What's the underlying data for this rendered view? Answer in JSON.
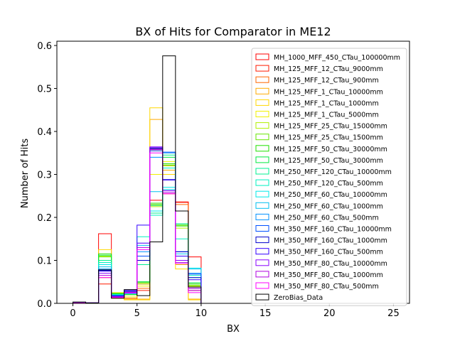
{
  "chart_data": {
    "type": "step-histogram",
    "title": "BX of Hits for Comparator in ME12",
    "xlabel": "BX",
    "ylabel": "Number of Hits",
    "xlim": [
      -1.25,
      26.25
    ],
    "ylim": [
      0,
      0.61
    ],
    "xticks": [
      0,
      5,
      10,
      15,
      20,
      25
    ],
    "yticks": [
      0.0,
      0.1,
      0.2,
      0.3,
      0.4,
      0.5,
      0.6
    ],
    "bin_edges": [
      0,
      1,
      2,
      3,
      4,
      5,
      6,
      7,
      8,
      9,
      10,
      11,
      12,
      13,
      14,
      15,
      16,
      17,
      18,
      19,
      20,
      21,
      22,
      23,
      24,
      25
    ],
    "legend_position": "upper right",
    "series": [
      {
        "name": "MH_1000_MFF_450_CTau_100000mm",
        "color": "#ff0000",
        "values": [
          0.001,
          0.001,
          0.162,
          0.015,
          0.02,
          0.045,
          0.24,
          0.255,
          0.236,
          0.108,
          0,
          0,
          0,
          0,
          0,
          0,
          0,
          0,
          0,
          0,
          0,
          0,
          0,
          0,
          0
        ]
      },
      {
        "name": "MH_125_MFF_12_CTau_9000mm",
        "color": "#ff1a00",
        "values": [
          0.001,
          0.001,
          0.045,
          0.012,
          0.01,
          0.03,
          0.36,
          0.32,
          0.235,
          0.03,
          0,
          0,
          0,
          0,
          0,
          0,
          0,
          0,
          0,
          0,
          0,
          0,
          0,
          0,
          0
        ]
      },
      {
        "name": "MH_125_MFF_12_CTau_900mm",
        "color": "#ff6600",
        "values": [
          0.001,
          0.001,
          0.06,
          0.014,
          0.012,
          0.035,
          0.355,
          0.315,
          0.23,
          0.035,
          0,
          0,
          0,
          0,
          0,
          0,
          0,
          0,
          0,
          0,
          0,
          0,
          0,
          0,
          0
        ]
      },
      {
        "name": "MH_125_MFF_1_CTau_10000mm",
        "color": "#ffaa00",
        "values": [
          0.001,
          0.001,
          0.1,
          0.02,
          0.01,
          0.01,
          0.428,
          0.31,
          0.1,
          0.01,
          0,
          0,
          0,
          0,
          0,
          0,
          0,
          0,
          0,
          0,
          0,
          0,
          0,
          0,
          0
        ]
      },
      {
        "name": "MH_125_MFF_1_CTau_1000mm",
        "color": "#ffd700",
        "values": [
          0.001,
          0.001,
          0.125,
          0.018,
          0.008,
          0.008,
          0.455,
          0.3,
          0.08,
          0.008,
          0,
          0,
          0,
          0,
          0,
          0,
          0,
          0,
          0,
          0,
          0,
          0,
          0,
          0,
          0
        ]
      },
      {
        "name": "MH_125_MFF_1_CTau_5000mm",
        "color": "#f0f000",
        "values": [
          0.001,
          0.001,
          0.11,
          0.025,
          0.015,
          0.04,
          0.3,
          0.33,
          0.09,
          0.04,
          0,
          0,
          0,
          0,
          0,
          0,
          0,
          0,
          0,
          0,
          0,
          0,
          0,
          0,
          0
        ]
      },
      {
        "name": "MH_125_MFF_25_CTau_15000mm",
        "color": "#b0f000",
        "values": [
          0.001,
          0.001,
          0.11,
          0.024,
          0.02,
          0.045,
          0.225,
          0.32,
          0.175,
          0.04,
          0,
          0,
          0,
          0,
          0,
          0,
          0,
          0,
          0,
          0,
          0,
          0,
          0,
          0,
          0
        ]
      },
      {
        "name": "MH_125_MFF_25_CTau_1500mm",
        "color": "#66e600",
        "values": [
          0.001,
          0.001,
          0.108,
          0.022,
          0.02,
          0.048,
          0.23,
          0.322,
          0.182,
          0.042,
          0,
          0,
          0,
          0,
          0,
          0,
          0,
          0,
          0,
          0,
          0,
          0,
          0,
          0,
          0
        ]
      },
      {
        "name": "MH_125_MFF_50_CTau_30000mm",
        "color": "#20e000",
        "values": [
          0.001,
          0.001,
          0.115,
          0.023,
          0.021,
          0.05,
          0.233,
          0.325,
          0.18,
          0.045,
          0,
          0,
          0,
          0,
          0,
          0,
          0,
          0,
          0,
          0,
          0,
          0,
          0,
          0,
          0
        ]
      },
      {
        "name": "MH_125_MFF_50_CTau_3000mm",
        "color": "#00e840",
        "values": [
          0.001,
          0.001,
          0.112,
          0.022,
          0.022,
          0.05,
          0.228,
          0.34,
          0.185,
          0.048,
          0,
          0,
          0,
          0,
          0,
          0,
          0,
          0,
          0,
          0,
          0,
          0,
          0,
          0,
          0
        ]
      },
      {
        "name": "MH_250_MFF_120_CTau_10000mm",
        "color": "#00f090",
        "values": [
          0.001,
          0.001,
          0.1,
          0.02,
          0.022,
          0.09,
          0.21,
          0.345,
          0.185,
          0.06,
          0,
          0,
          0,
          0,
          0,
          0,
          0,
          0,
          0,
          0,
          0,
          0,
          0,
          0,
          0
        ]
      },
      {
        "name": "MH_250_MFF_120_CTau_500mm",
        "color": "#00f0c0",
        "values": [
          0.001,
          0.001,
          0.095,
          0.02,
          0.023,
          0.155,
          0.205,
          0.315,
          0.15,
          0.065,
          0,
          0,
          0,
          0,
          0,
          0,
          0,
          0,
          0,
          0,
          0,
          0,
          0,
          0,
          0
        ]
      },
      {
        "name": "MH_250_MFF_60_CTau_10000mm",
        "color": "#00e8e8",
        "values": [
          0.001,
          0.001,
          0.09,
          0.02,
          0.022,
          0.14,
          0.215,
          0.27,
          0.12,
          0.082,
          0,
          0,
          0,
          0,
          0,
          0,
          0,
          0,
          0,
          0,
          0,
          0,
          0,
          0,
          0
        ]
      },
      {
        "name": "MH_250_MFF_60_CTau_1000mm",
        "color": "#00c0f0",
        "values": [
          0.001,
          0.001,
          0.085,
          0.019,
          0.023,
          0.135,
          0.26,
          0.265,
          0.115,
          0.08,
          0,
          0,
          0,
          0,
          0,
          0,
          0,
          0,
          0,
          0,
          0,
          0,
          0,
          0,
          0
        ]
      },
      {
        "name": "MH_250_MFF_60_CTau_500mm",
        "color": "#0090ff",
        "values": [
          0.001,
          0.001,
          0.08,
          0.018,
          0.024,
          0.12,
          0.34,
          0.35,
          0.11,
          0.07,
          0,
          0,
          0,
          0,
          0,
          0,
          0,
          0,
          0,
          0,
          0,
          0,
          0,
          0,
          0
        ]
      },
      {
        "name": "MH_350_MFF_160_CTau_10000mm",
        "color": "#0050ff",
        "values": [
          0.001,
          0.001,
          0.078,
          0.018,
          0.025,
          0.11,
          0.355,
          0.352,
          0.12,
          0.068,
          0,
          0,
          0,
          0,
          0,
          0,
          0,
          0,
          0,
          0,
          0,
          0,
          0,
          0,
          0
        ]
      },
      {
        "name": "MH_350_MFF_160_CTau_1000mm",
        "color": "#0000cc",
        "values": [
          0.001,
          0.001,
          0.076,
          0.017,
          0.028,
          0.1,
          0.36,
          0.288,
          0.12,
          0.06,
          0,
          0,
          0,
          0,
          0,
          0,
          0,
          0,
          0,
          0,
          0,
          0,
          0,
          0,
          0
        ]
      },
      {
        "name": "MH_350_MFF_160_CTau_500mm",
        "color": "#3300ff",
        "values": [
          0.001,
          0.001,
          0.075,
          0.016,
          0.03,
          0.182,
          0.362,
          0.287,
          0.11,
          0.055,
          0,
          0,
          0,
          0,
          0,
          0,
          0,
          0,
          0,
          0,
          0,
          0,
          0,
          0,
          0
        ]
      },
      {
        "name": "MH_350_MFF_80_CTau_10000mm",
        "color": "#8800ff",
        "values": [
          0.001,
          0.001,
          0.07,
          0.016,
          0.026,
          0.14,
          0.364,
          0.262,
          0.1,
          0.035,
          0,
          0,
          0,
          0,
          0,
          0,
          0,
          0,
          0,
          0,
          0,
          0,
          0,
          0,
          0
        ]
      },
      {
        "name": "MH_350_MFF_80_CTau_1000mm",
        "color": "#b000e0",
        "values": [
          0.001,
          0.001,
          0.065,
          0.015,
          0.025,
          0.13,
          0.358,
          0.258,
          0.095,
          0.03,
          0,
          0,
          0,
          0,
          0,
          0,
          0,
          0,
          0,
          0,
          0,
          0,
          0,
          0,
          0
        ]
      },
      {
        "name": "MH_350_MFF_80_CTau_500mm",
        "color": "#ff00ff",
        "values": [
          0.001,
          0.001,
          0.06,
          0.014,
          0.024,
          0.125,
          0.35,
          0.255,
          0.092,
          0.025,
          0,
          0,
          0,
          0,
          0,
          0,
          0,
          0,
          0,
          0,
          0,
          0,
          0,
          0,
          0
        ]
      },
      {
        "name": "ZeroBias_Data",
        "color": "#000000",
        "values": [
          0.003,
          0.001,
          0.078,
          0.012,
          0.032,
          0.018,
          0.143,
          0.576,
          0.215,
          0.038,
          0,
          0,
          0,
          0,
          0,
          0,
          0,
          0,
          0,
          0,
          0,
          0,
          0,
          0,
          0
        ]
      }
    ]
  }
}
